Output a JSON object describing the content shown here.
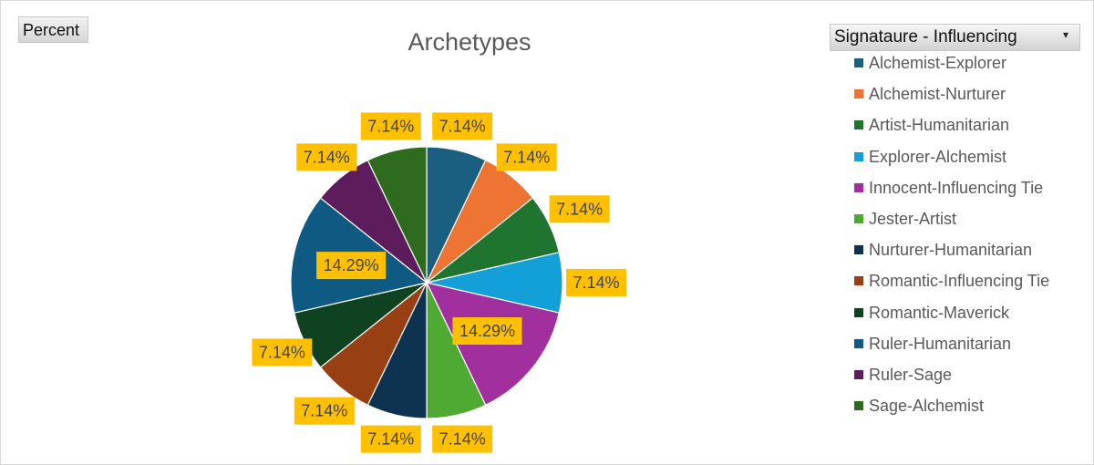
{
  "controls": {
    "field_button_label": "Percent",
    "filter_label": "Signataure  - Influencing",
    "filter_arrow": "▾"
  },
  "chart_data": {
    "type": "pie",
    "title": "Archetypes",
    "legend_position": "right",
    "labels": [
      "Alchemist-Explorer",
      "Alchemist-Nurturer",
      "Artist-Humanitarian",
      "Explorer-Alchemist",
      "Innocent-Influencing Tie",
      "Jester-Artist",
      "Nurturer-Humanitarian",
      "Romantic-Influencing Tie",
      "Romantic-Maverick",
      "Ruler-Humanitarian",
      "Ruler-Sage",
      "Sage-Alchemist"
    ],
    "values": [
      7.14,
      7.14,
      7.14,
      7.14,
      14.29,
      7.14,
      7.14,
      7.14,
      7.14,
      14.29,
      7.14,
      7.14
    ],
    "data_labels": [
      "7.14%",
      "7.14%",
      "7.14%",
      "7.14%",
      "14.29%",
      "7.14%",
      "7.14%",
      "7.14%",
      "7.14%",
      "14.29%",
      "7.14%",
      "7.14%"
    ],
    "colors": [
      "#1a5e80",
      "#ed7432",
      "#1f7530",
      "#139fd7",
      "#a22f9e",
      "#4faa33",
      "#0e3350",
      "#983f13",
      "#0f4220",
      "#0e5a83",
      "#5d1c5b",
      "#2e6b1f"
    ]
  }
}
